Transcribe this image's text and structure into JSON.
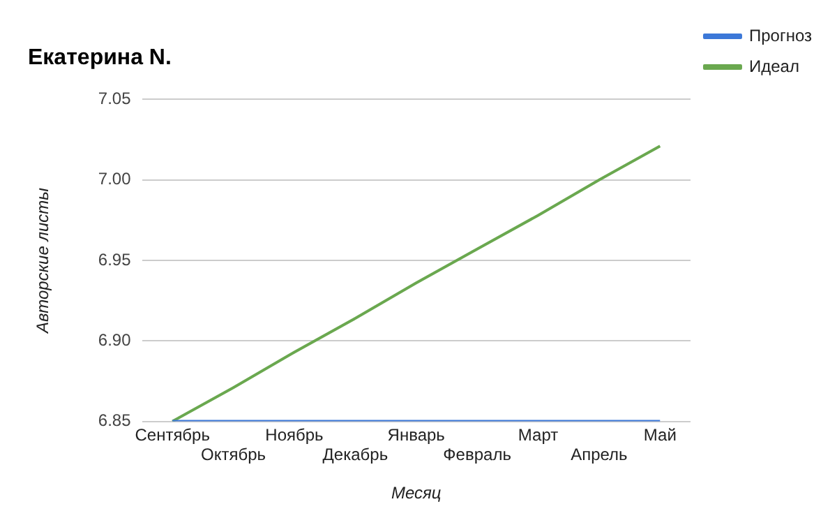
{
  "chart_data": {
    "type": "line",
    "title": "Екатерина N.",
    "xlabel": "Месяц",
    "ylabel": "Авторские листы",
    "categories": [
      "Сентябрь",
      "Октябрь",
      "Ноябрь",
      "Декабрь",
      "Январь",
      "Февраль",
      "Март",
      "Апрель",
      "Май"
    ],
    "series": [
      {
        "name": "Прогноз",
        "color": "#3c78d8",
        "values": [
          6.85,
          6.85,
          6.85,
          6.85,
          6.85,
          6.85,
          6.85,
          6.85,
          6.85
        ]
      },
      {
        "name": "Идеал",
        "color": "#6aa84f",
        "values": [
          6.85,
          6.871,
          6.893,
          6.914,
          6.936,
          6.957,
          6.978,
          7.0,
          7.021
        ]
      }
    ],
    "ylim": [
      6.85,
      7.05
    ],
    "yticks": [
      {
        "value": 6.85,
        "label": "6.85"
      },
      {
        "value": 6.9,
        "label": "6.90"
      },
      {
        "value": 6.95,
        "label": "6.95"
      },
      {
        "value": 7.0,
        "label": "7.00"
      },
      {
        "value": 7.05,
        "label": "7.05"
      }
    ],
    "grid": "y",
    "legend": "top right",
    "marker": "none",
    "line_style": "solid"
  }
}
